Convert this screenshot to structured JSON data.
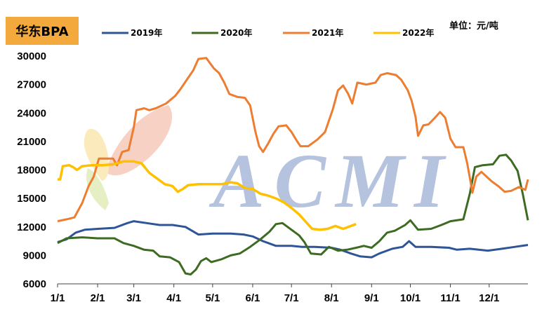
{
  "chart_data": {
    "type": "line",
    "title": "华东BPA",
    "unit": "单位：元/吨",
    "watermark": "ACMI",
    "x_ticks": [
      "1/1",
      "2/1",
      "3/1",
      "4/1",
      "5/1",
      "6/1",
      "7/1",
      "8/1",
      "9/1",
      "10/1",
      "11/1",
      "12/1"
    ],
    "y_ticks": [
      "30000",
      "27000",
      "24000",
      "21000",
      "18000",
      "15000",
      "12000",
      "9000",
      "6000"
    ],
    "ylim": [
      6000,
      30000
    ],
    "x_unit": "day of year",
    "xlim": [
      1,
      365
    ],
    "grid": false,
    "legend_position": "top",
    "series": [
      {
        "name": "2019年",
        "color": "#2e5597",
        "points": [
          [
            1,
            10400
          ],
          [
            8,
            10700
          ],
          [
            15,
            11400
          ],
          [
            22,
            11700
          ],
          [
            32,
            11800
          ],
          [
            45,
            11900
          ],
          [
            55,
            12400
          ],
          [
            60,
            12600
          ],
          [
            70,
            12400
          ],
          [
            80,
            12200
          ],
          [
            90,
            12200
          ],
          [
            100,
            12000
          ],
          [
            110,
            11200
          ],
          [
            121,
            11300
          ],
          [
            135,
            11300
          ],
          [
            145,
            11200
          ],
          [
            152,
            11000
          ],
          [
            160,
            10500
          ],
          [
            170,
            10000
          ],
          [
            182,
            10000
          ],
          [
            190,
            9900
          ],
          [
            200,
            9900
          ],
          [
            213,
            9800
          ],
          [
            220,
            9600
          ],
          [
            228,
            9200
          ],
          [
            235,
            8900
          ],
          [
            244,
            8800
          ],
          [
            250,
            9200
          ],
          [
            260,
            9700
          ],
          [
            268,
            9900
          ],
          [
            273,
            10500
          ],
          [
            278,
            9900
          ],
          [
            290,
            9900
          ],
          [
            304,
            9800
          ],
          [
            310,
            9600
          ],
          [
            320,
            9700
          ],
          [
            334,
            9500
          ],
          [
            345,
            9700
          ],
          [
            355,
            9900
          ],
          [
            365,
            10100
          ]
        ]
      },
      {
        "name": "2020年",
        "color": "#3d6b22",
        "points": [
          [
            1,
            10300
          ],
          [
            8,
            10800
          ],
          [
            20,
            10900
          ],
          [
            32,
            10800
          ],
          [
            45,
            10800
          ],
          [
            52,
            10300
          ],
          [
            60,
            10000
          ],
          [
            68,
            9600
          ],
          [
            75,
            9500
          ],
          [
            80,
            8900
          ],
          [
            88,
            8800
          ],
          [
            95,
            8300
          ],
          [
            100,
            7100
          ],
          [
            104,
            7000
          ],
          [
            108,
            7500
          ],
          [
            112,
            8400
          ],
          [
            116,
            8700
          ],
          [
            120,
            8300
          ],
          [
            128,
            8600
          ],
          [
            135,
            9000
          ],
          [
            142,
            9200
          ],
          [
            150,
            9900
          ],
          [
            158,
            10700
          ],
          [
            165,
            11500
          ],
          [
            170,
            12300
          ],
          [
            175,
            12400
          ],
          [
            182,
            11700
          ],
          [
            188,
            11100
          ],
          [
            192,
            10400
          ],
          [
            197,
            9200
          ],
          [
            205,
            9100
          ],
          [
            211,
            9900
          ],
          [
            218,
            9500
          ],
          [
            225,
            9600
          ],
          [
            232,
            9800
          ],
          [
            238,
            10000
          ],
          [
            244,
            9800
          ],
          [
            250,
            10500
          ],
          [
            256,
            11400
          ],
          [
            262,
            11600
          ],
          [
            270,
            12200
          ],
          [
            274,
            12700
          ],
          [
            280,
            11700
          ],
          [
            290,
            11800
          ],
          [
            298,
            12200
          ],
          [
            305,
            12600
          ],
          [
            315,
            12800
          ],
          [
            320,
            15500
          ],
          [
            324,
            18300
          ],
          [
            330,
            18500
          ],
          [
            338,
            18600
          ],
          [
            343,
            19500
          ],
          [
            348,
            19600
          ],
          [
            352,
            19000
          ],
          [
            357,
            17900
          ],
          [
            361,
            15500
          ],
          [
            365,
            12700
          ]
        ]
      },
      {
        "name": "2021年",
        "color": "#ec7d31",
        "points": [
          [
            1,
            12600
          ],
          [
            8,
            12800
          ],
          [
            14,
            13000
          ],
          [
            20,
            14500
          ],
          [
            25,
            16300
          ],
          [
            29,
            17300
          ],
          [
            33,
            19200
          ],
          [
            44,
            19200
          ],
          [
            47,
            18500
          ],
          [
            51,
            19900
          ],
          [
            56,
            20100
          ],
          [
            60,
            22500
          ],
          [
            62,
            24300
          ],
          [
            68,
            24500
          ],
          [
            72,
            24300
          ],
          [
            77,
            24500
          ],
          [
            85,
            25000
          ],
          [
            92,
            25800
          ],
          [
            96,
            26500
          ],
          [
            102,
            27700
          ],
          [
            106,
            28500
          ],
          [
            110,
            29700
          ],
          [
            116,
            29800
          ],
          [
            122,
            28700
          ],
          [
            126,
            28200
          ],
          [
            130,
            27200
          ],
          [
            134,
            26000
          ],
          [
            140,
            25700
          ],
          [
            146,
            25600
          ],
          [
            150,
            24800
          ],
          [
            154,
            22100
          ],
          [
            157,
            20500
          ],
          [
            160,
            19900
          ],
          [
            164,
            20800
          ],
          [
            168,
            21800
          ],
          [
            172,
            22600
          ],
          [
            178,
            22700
          ],
          [
            182,
            22000
          ],
          [
            186,
            21100
          ],
          [
            189,
            20500
          ],
          [
            195,
            20500
          ],
          [
            202,
            21200
          ],
          [
            208,
            22000
          ],
          [
            214,
            24400
          ],
          [
            218,
            26400
          ],
          [
            222,
            26900
          ],
          [
            226,
            26000
          ],
          [
            229,
            25000
          ],
          [
            233,
            27200
          ],
          [
            240,
            27000
          ],
          [
            247,
            27200
          ],
          [
            251,
            28000
          ],
          [
            256,
            28200
          ],
          [
            263,
            28000
          ],
          [
            267,
            27500
          ],
          [
            272,
            26400
          ],
          [
            275,
            25300
          ],
          [
            278,
            23600
          ],
          [
            280,
            21600
          ],
          [
            284,
            22700
          ],
          [
            288,
            22800
          ],
          [
            293,
            23500
          ],
          [
            297,
            24100
          ],
          [
            301,
            23500
          ],
          [
            305,
            21300
          ],
          [
            309,
            20400
          ],
          [
            315,
            20400
          ],
          [
            318,
            18700
          ],
          [
            320,
            17200
          ],
          [
            322,
            15600
          ],
          [
            325,
            17300
          ],
          [
            329,
            17800
          ],
          [
            333,
            17300
          ],
          [
            337,
            16800
          ],
          [
            342,
            16300
          ],
          [
            347,
            15700
          ],
          [
            352,
            15800
          ],
          [
            358,
            16200
          ],
          [
            363,
            15900
          ],
          [
            365,
            17000
          ]
        ]
      },
      {
        "name": "2022年",
        "color": "#ffc000",
        "points": [
          [
            1,
            17000
          ],
          [
            3,
            17000
          ],
          [
            5,
            18400
          ],
          [
            10,
            18500
          ],
          [
            13,
            18300
          ],
          [
            16,
            18000
          ],
          [
            20,
            18400
          ],
          [
            28,
            18500
          ],
          [
            36,
            18500
          ],
          [
            44,
            18600
          ],
          [
            52,
            18900
          ],
          [
            60,
            18900
          ],
          [
            66,
            18700
          ],
          [
            72,
            17700
          ],
          [
            78,
            17100
          ],
          [
            84,
            16500
          ],
          [
            90,
            16300
          ],
          [
            94,
            15700
          ],
          [
            98,
            16000
          ],
          [
            102,
            16400
          ],
          [
            110,
            16500
          ],
          [
            120,
            16500
          ],
          [
            128,
            16500
          ],
          [
            135,
            16700
          ],
          [
            140,
            16600
          ],
          [
            146,
            16100
          ],
          [
            152,
            16000
          ],
          [
            158,
            15500
          ],
          [
            164,
            15300
          ],
          [
            170,
            15000
          ],
          [
            176,
            14600
          ],
          [
            182,
            14000
          ],
          [
            188,
            13300
          ],
          [
            194,
            12400
          ],
          [
            198,
            11800
          ],
          [
            204,
            11700
          ],
          [
            210,
            11800
          ],
          [
            216,
            12100
          ],
          [
            222,
            11800
          ],
          [
            228,
            12100
          ],
          [
            232,
            12300
          ]
        ]
      }
    ]
  }
}
